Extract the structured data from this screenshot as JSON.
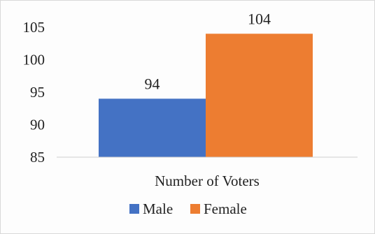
{
  "chart_data": {
    "type": "bar",
    "categories": [
      "Number of Voters"
    ],
    "series": [
      {
        "name": "Male",
        "values": [
          94
        ],
        "color": "#4472c4"
      },
      {
        "name": "Female",
        "values": [
          104
        ],
        "color": "#ed7d31"
      }
    ],
    "ylim": [
      85,
      105
    ],
    "yticks": [
      85,
      90,
      95,
      100,
      105
    ],
    "ytick_labels": [
      "85",
      "90",
      "95",
      "100",
      "105"
    ],
    "data_labels": [
      "94",
      "104"
    ],
    "legend_position": "bottom",
    "grid": false
  }
}
